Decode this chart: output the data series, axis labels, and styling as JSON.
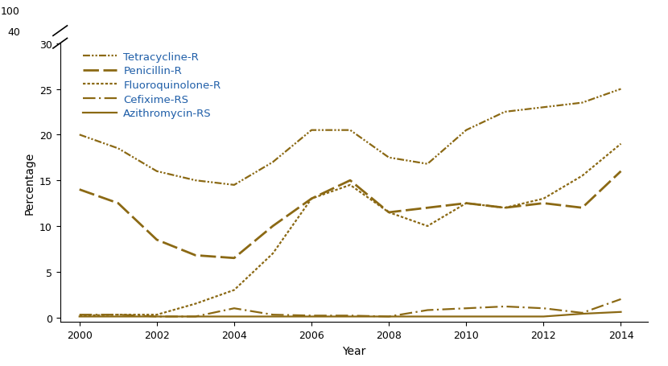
{
  "years": [
    2000,
    2001,
    2002,
    2003,
    2004,
    2005,
    2006,
    2007,
    2008,
    2009,
    2010,
    2011,
    2012,
    2013,
    2014
  ],
  "tetracycline_r": [
    20.0,
    18.5,
    16.0,
    15.0,
    14.5,
    17.0,
    20.5,
    20.5,
    17.5,
    16.8,
    20.5,
    22.5,
    23.0,
    23.5,
    25.0
  ],
  "penicillin_r": [
    14.0,
    12.5,
    8.5,
    6.8,
    6.5,
    10.0,
    13.0,
    15.0,
    11.5,
    12.0,
    12.5,
    12.0,
    12.5,
    12.0,
    16.0
  ],
  "fluoroquinolone_r": [
    0.2,
    0.3,
    0.3,
    1.5,
    3.0,
    7.0,
    13.0,
    14.5,
    11.5,
    10.0,
    12.5,
    12.0,
    13.0,
    15.5,
    19.0
  ],
  "cefixime_rs": [
    0.3,
    0.3,
    0.1,
    0.1,
    1.0,
    0.3,
    0.2,
    0.2,
    0.1,
    0.8,
    1.0,
    1.2,
    1.0,
    0.5,
    2.0
  ],
  "azithromycin_rs": [
    0.1,
    0.1,
    0.1,
    0.1,
    0.1,
    0.1,
    0.1,
    0.1,
    0.1,
    0.1,
    0.1,
    0.1,
    0.1,
    0.4,
    0.6
  ],
  "color": "#8B6914",
  "ylabel": "Percentage",
  "xlabel": "Year",
  "ymin": 0,
  "ymax": 30,
  "ytick_positions": [
    0,
    5,
    10,
    15,
    20,
    25,
    30
  ],
  "ytick_labels": [
    "0",
    "5",
    "10",
    "15",
    "20",
    "25",
    "30"
  ],
  "ytick_above_break": [
    "40",
    "100"
  ],
  "xtick_positions": [
    2000,
    2002,
    2004,
    2006,
    2008,
    2010,
    2012,
    2014
  ],
  "legend_labels": [
    "Tetracycline-R",
    "Penicillin-R",
    "Fluoroquinolone-R",
    "Cefixime-RS",
    "Azithromycin-RS"
  ],
  "legend_label_color": "#1F5EA8",
  "background_color": "#ffffff",
  "line_width": 1.6
}
